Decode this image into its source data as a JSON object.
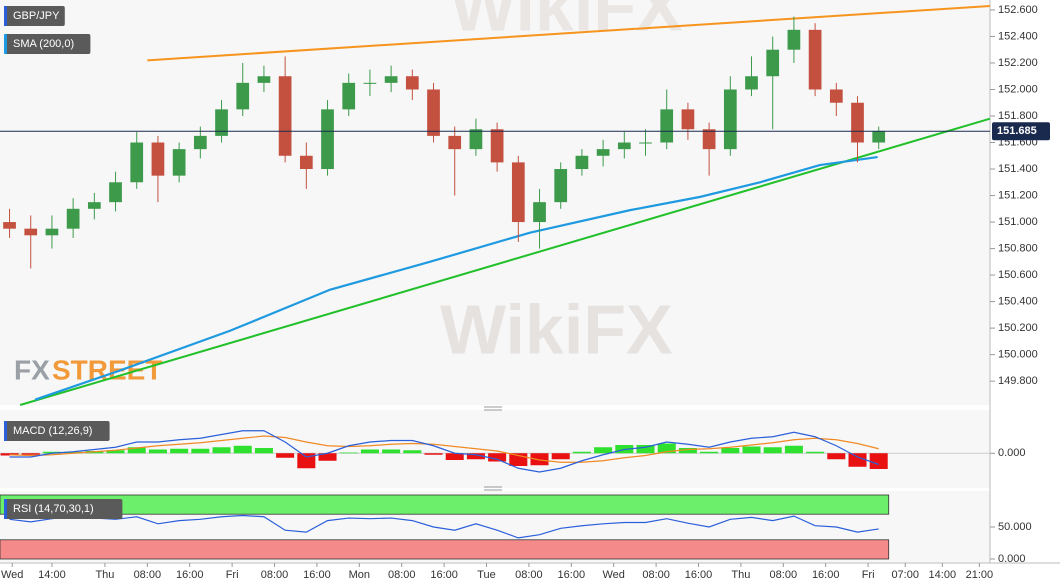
{
  "chart_data": [
    {
      "type": "candlestick",
      "title": "GBP/JPY",
      "x": [
        -18,
        -14,
        -10,
        -6,
        -2,
        2,
        6,
        10,
        14,
        18,
        22,
        26,
        30,
        34,
        38,
        42,
        46,
        50,
        54,
        58,
        62,
        66,
        70,
        74,
        78,
        82,
        86,
        90,
        94,
        98,
        102,
        106,
        110,
        114,
        118,
        122,
        126,
        130,
        134,
        138,
        142,
        146
      ],
      "open": [
        151.0,
        150.95,
        150.9,
        150.95,
        151.1,
        151.15,
        151.3,
        151.6,
        151.35,
        151.55,
        151.65,
        151.85,
        152.05,
        152.1,
        151.5,
        151.4,
        151.85,
        152.05,
        152.05,
        152.1,
        152.0,
        151.65,
        151.55,
        151.7,
        151.45,
        151.0,
        151.15,
        151.4,
        151.5,
        151.55,
        151.6,
        151.6,
        151.85,
        151.7,
        151.55,
        152.0,
        152.1,
        152.3,
        152.45,
        152.0,
        151.9,
        151.6
      ],
      "high": [
        151.1,
        151.05,
        151.05,
        151.18,
        151.22,
        151.38,
        151.68,
        151.65,
        151.6,
        151.72,
        151.92,
        152.2,
        152.18,
        152.25,
        151.6,
        151.92,
        152.12,
        152.15,
        152.18,
        152.15,
        152.05,
        151.72,
        151.78,
        151.75,
        151.5,
        151.25,
        151.45,
        151.55,
        151.62,
        151.68,
        151.7,
        152.0,
        151.9,
        151.75,
        152.1,
        152.25,
        152.4,
        152.55,
        152.5,
        152.05,
        151.95,
        151.72
      ],
      "low": [
        150.88,
        150.65,
        150.8,
        150.88,
        151.02,
        151.08,
        151.25,
        151.15,
        151.3,
        151.48,
        151.6,
        151.8,
        151.98,
        151.45,
        151.25,
        151.35,
        151.8,
        151.95,
        151.98,
        151.92,
        151.6,
        151.2,
        151.5,
        151.38,
        150.85,
        150.8,
        151.1,
        151.35,
        151.42,
        151.48,
        151.5,
        151.55,
        151.62,
        151.35,
        151.5,
        151.95,
        151.7,
        152.2,
        151.95,
        151.8,
        151.45,
        151.55
      ],
      "close": [
        150.95,
        150.9,
        150.95,
        151.1,
        151.15,
        151.3,
        151.6,
        151.35,
        151.55,
        151.65,
        151.85,
        152.05,
        152.1,
        151.5,
        151.4,
        151.85,
        152.05,
        152.05,
        152.1,
        152.0,
        151.65,
        151.55,
        151.7,
        151.45,
        151.0,
        151.15,
        151.4,
        151.5,
        151.55,
        151.6,
        151.6,
        151.85,
        151.7,
        151.55,
        152.0,
        152.1,
        152.3,
        152.45,
        152.0,
        151.9,
        151.6,
        151.685
      ],
      "up_color": "#3c9a4a",
      "down_color": "#c4513f",
      "series": [
        {
          "name": "SMA (200,0)",
          "color": "#1f9ae0",
          "x": [
            -13.2,
            2.8,
            23.6,
            42.5,
            61.3,
            80.2,
            99.1,
            112.3,
            123.6,
            134.9,
            145.8
          ],
          "values": [
            149.66,
            149.88,
            150.18,
            150.49,
            150.7,
            150.92,
            151.09,
            151.19,
            151.3,
            151.43,
            151.49
          ]
        }
      ],
      "trendlines": [
        {
          "color": "#f7941d",
          "x": [
            8,
            167
          ],
          "values": [
            152.22,
            152.63
          ]
        },
        {
          "color": "#22c02a",
          "x": [
            -16,
            167
          ],
          "values": [
            149.62,
            151.78
          ]
        }
      ],
      "last_price": 151.685,
      "last_price_color": "#1a2a4f",
      "xlim": [
        -19.8,
        167
      ],
      "ylim": [
        149.62,
        152.675
      ],
      "yticks": [
        {
          "value": 149.8,
          "label": "149.800"
        },
        {
          "value": 150.0,
          "label": "150.000"
        },
        {
          "value": 150.2,
          "label": "150.200"
        },
        {
          "value": 150.4,
          "label": "150.400"
        },
        {
          "value": 150.6,
          "label": "150.600"
        },
        {
          "value": 150.8,
          "label": "150.800"
        },
        {
          "value": 151.0,
          "label": "151.000"
        },
        {
          "value": 151.2,
          "label": "151.200"
        },
        {
          "value": 151.4,
          "label": "151.400"
        },
        {
          "value": 151.6,
          "label": "151.600"
        },
        {
          "value": 151.8,
          "label": "151.800"
        },
        {
          "value": 152.0,
          "label": "152.000"
        },
        {
          "value": 152.2,
          "label": "152.200"
        },
        {
          "value": 152.4,
          "label": "152.400"
        },
        {
          "value": 152.6,
          "label": "152.600"
        }
      ],
      "watermark": "WikiFX",
      "brand": [
        "FX",
        "STREET"
      ]
    },
    {
      "type": "macd",
      "title": "MACD (12,26,9)",
      "x": [
        -18,
        -14,
        -10,
        -6,
        -2,
        2,
        6,
        10,
        14,
        18,
        22,
        26,
        30,
        34,
        38,
        42,
        46,
        50,
        54,
        58,
        62,
        66,
        70,
        74,
        78,
        82,
        86,
        90,
        94,
        98,
        102,
        106,
        110,
        114,
        118,
        122,
        126,
        130,
        134,
        138,
        142,
        146
      ],
      "macd": [
        -0.05,
        -0.05,
        0.0,
        0.02,
        0.05,
        0.08,
        0.15,
        0.15,
        0.18,
        0.2,
        0.25,
        0.3,
        0.3,
        0.15,
        -0.05,
        0.0,
        0.1,
        0.15,
        0.17,
        0.17,
        0.1,
        0.0,
        -0.02,
        -0.08,
        -0.2,
        -0.25,
        -0.2,
        -0.1,
        -0.02,
        0.05,
        0.08,
        0.15,
        0.12,
        0.08,
        0.15,
        0.2,
        0.22,
        0.28,
        0.22,
        0.1,
        -0.05,
        -0.15
      ],
      "signal": [
        -0.02,
        -0.03,
        -0.02,
        0.0,
        0.02,
        0.04,
        0.07,
        0.1,
        0.12,
        0.14,
        0.17,
        0.2,
        0.23,
        0.21,
        0.15,
        0.1,
        0.09,
        0.1,
        0.12,
        0.13,
        0.12,
        0.09,
        0.06,
        0.03,
        -0.03,
        -0.09,
        -0.12,
        -0.12,
        -0.1,
        -0.06,
        -0.03,
        0.02,
        0.05,
        0.06,
        0.08,
        0.11,
        0.14,
        0.18,
        0.2,
        0.18,
        0.13,
        0.06
      ],
      "histogram": [
        -0.03,
        -0.02,
        0.02,
        0.02,
        0.03,
        0.04,
        0.08,
        0.05,
        0.06,
        0.06,
        0.08,
        0.1,
        0.07,
        -0.06,
        -0.2,
        -0.1,
        0.01,
        0.05,
        0.05,
        0.04,
        -0.02,
        -0.09,
        -0.08,
        -0.11,
        -0.17,
        -0.16,
        -0.08,
        0.02,
        0.08,
        0.11,
        0.11,
        0.13,
        0.07,
        0.02,
        0.07,
        0.09,
        0.08,
        0.1,
        0.02,
        -0.08,
        -0.18,
        -0.21
      ],
      "macd_color": "#2b5fd9",
      "signal_color": "#f08a24",
      "up_color": "#2fe02f",
      "down_color": "#e81010",
      "xlim": [
        -19.8,
        167
      ],
      "ylim": [
        -0.45,
        0.55
      ],
      "yticks": [
        {
          "value": 0,
          "label": "0.000"
        }
      ]
    },
    {
      "type": "rsi",
      "title": "RSI (14,70,30,1)",
      "x": [
        -18,
        -14,
        -10,
        -6,
        -2,
        2,
        6,
        10,
        14,
        18,
        22,
        26,
        30,
        34,
        38,
        42,
        46,
        50,
        54,
        58,
        62,
        66,
        70,
        74,
        78,
        82,
        86,
        90,
        94,
        98,
        102,
        106,
        110,
        114,
        118,
        122,
        126,
        130,
        134,
        138,
        142,
        146
      ],
      "values": [
        62,
        58,
        63,
        66,
        64,
        62,
        66,
        55,
        60,
        62,
        66,
        68,
        66,
        45,
        42,
        60,
        64,
        63,
        64,
        60,
        50,
        45,
        55,
        45,
        33,
        38,
        48,
        52,
        55,
        57,
        57,
        63,
        56,
        50,
        62,
        65,
        60,
        67,
        52,
        50,
        42,
        47
      ],
      "color": "#2b5fd9",
      "bands": [
        {
          "from": 70,
          "to": 100,
          "color": "#6cf06c"
        },
        {
          "from": 0,
          "to": 30,
          "color": "#f58a8a"
        }
      ],
      "xlim": [
        -19.8,
        167
      ],
      "ylim": [
        0,
        100
      ],
      "yticks": [
        {
          "value": 50,
          "label": "50.000"
        },
        {
          "value": 0,
          "label": "0.000"
        }
      ],
      "xticks": [
        {
          "value": -17.5,
          "label": "Wed"
        },
        {
          "value": -10,
          "label": "14:00"
        },
        {
          "value": 0,
          "label": "Thu"
        },
        {
          "value": 8,
          "label": "08:00"
        },
        {
          "value": 16,
          "label": "16:00"
        },
        {
          "value": 24,
          "label": "Fri"
        },
        {
          "value": 32,
          "label": "08:00"
        },
        {
          "value": 40,
          "label": "16:00"
        },
        {
          "value": 48,
          "label": "Mon"
        },
        {
          "value": 56,
          "label": "08:00"
        },
        {
          "value": 64,
          "label": "16:00"
        },
        {
          "value": 72,
          "label": "Tue"
        },
        {
          "value": 80,
          "label": "08:00"
        },
        {
          "value": 88,
          "label": "16:00"
        },
        {
          "value": 96,
          "label": "Wed"
        },
        {
          "value": 104,
          "label": "08:00"
        },
        {
          "value": 112,
          "label": "16:00"
        },
        {
          "value": 120,
          "label": "Thu"
        },
        {
          "value": 128,
          "label": "08:00"
        },
        {
          "value": 136,
          "label": "16:00"
        },
        {
          "value": 144,
          "label": "Fri"
        },
        {
          "value": 151,
          "label": "07:00"
        },
        {
          "value": 158,
          "label": "14:00"
        },
        {
          "value": 165,
          "label": "21:00"
        }
      ]
    }
  ]
}
